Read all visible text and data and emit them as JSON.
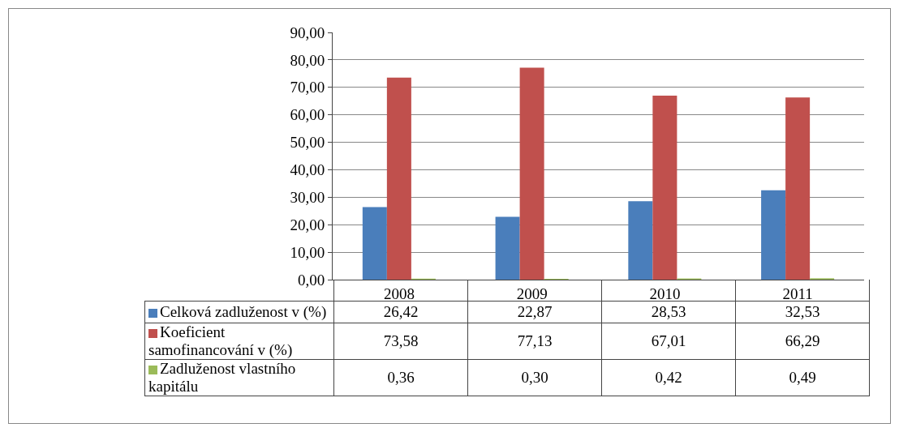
{
  "chart_data": {
    "type": "bar",
    "categories": [
      "2008",
      "2009",
      "2010",
      "2011"
    ],
    "series": [
      {
        "name": "Celková zadluženost v (%)",
        "color": "#4a7ebb",
        "values": [
          26.42,
          22.87,
          28.53,
          32.53
        ],
        "value_labels": [
          "26,42",
          "22,87",
          "28,53",
          "32,53"
        ]
      },
      {
        "name": "Koeficient samofinancování v (%)",
        "color": "#c0504d",
        "values": [
          73.58,
          77.13,
          67.01,
          66.29
        ],
        "value_labels": [
          "73,58",
          "77,13",
          "67,01",
          "66,29"
        ]
      },
      {
        "name": "Zadluženost vlastního kapitálu",
        "color": "#9bbb59",
        "values": [
          0.36,
          0.3,
          0.42,
          0.49
        ],
        "value_labels": [
          "0,36",
          "0,30",
          "0,42",
          "0,49"
        ]
      }
    ],
    "ylim": [
      0,
      90
    ],
    "yticks": [
      {
        "value": 0,
        "label": "0,00"
      },
      {
        "value": 10,
        "label": "10,00"
      },
      {
        "value": 20,
        "label": "20,00"
      },
      {
        "value": 30,
        "label": "30,00"
      },
      {
        "value": 40,
        "label": "40,00"
      },
      {
        "value": 50,
        "label": "50,00"
      },
      {
        "value": 60,
        "label": "60,00"
      },
      {
        "value": 70,
        "label": "70,00"
      },
      {
        "value": 80,
        "label": "80,00"
      },
      {
        "value": 90,
        "label": "90,00"
      }
    ],
    "grid": "y",
    "legend": "bottom"
  }
}
